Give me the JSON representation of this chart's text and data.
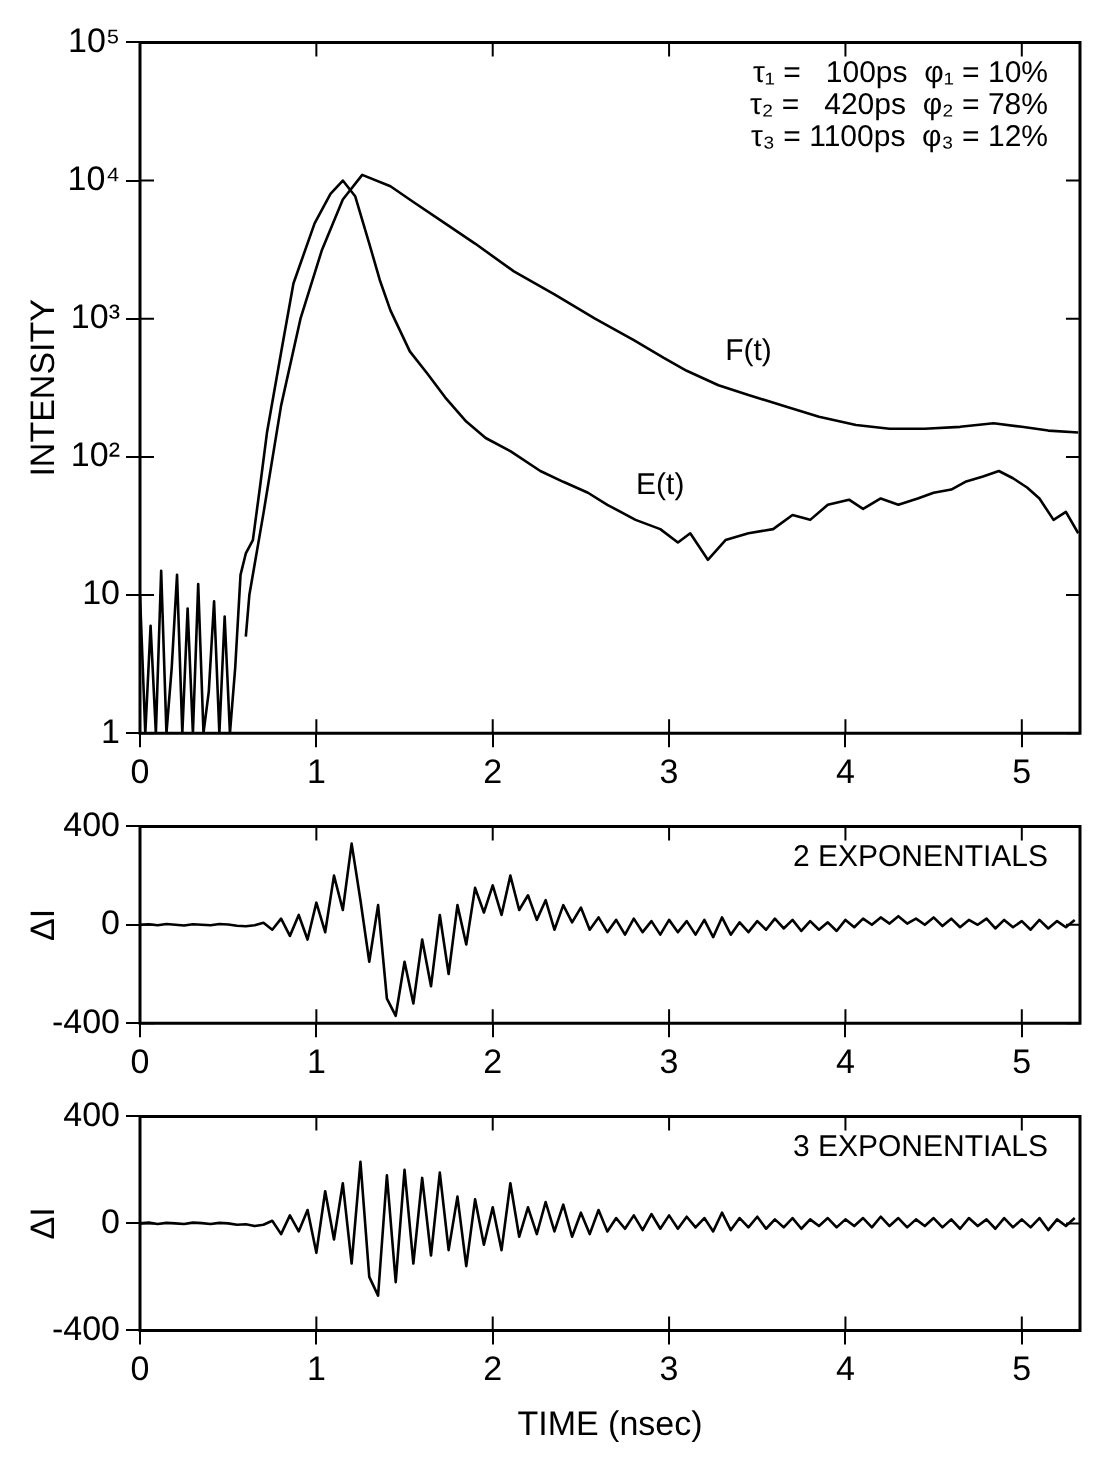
{
  "chart_data": [
    {
      "type": "line",
      "ylabel": "INTENSITY",
      "log": "y",
      "grid": false,
      "legend": false,
      "marker": "none",
      "line_style": "solid",
      "xlim": [
        0,
        5.33
      ],
      "xticks": [
        0,
        1,
        2,
        3,
        4,
        5
      ],
      "ylim": [
        1,
        100000
      ],
      "yticks": [
        {
          "value": 1,
          "label": "1"
        },
        {
          "value": 10,
          "label": "10"
        },
        {
          "value": 100,
          "label": "10²"
        },
        {
          "value": 1000,
          "label": "10³"
        },
        {
          "value": 10000,
          "label": "10⁴"
        },
        {
          "value": 100000,
          "label": "10⁵"
        }
      ],
      "annotations": [
        "τ₁ =   100ps  φ₁ = 10%",
        "τ₂ =   420ps  φ₂ = 78%",
        "τ₃ = 1100ps  φ₃ = 12%"
      ],
      "series": [
        {
          "name": "E(t)",
          "color": "#000000",
          "x": [
            0,
            0.03,
            0.06,
            0.09,
            0.12,
            0.15,
            0.18,
            0.21,
            0.24,
            0.27,
            0.3,
            0.33,
            0.36,
            0.39,
            0.42,
            0.45,
            0.48,
            0.51,
            0.54,
            0.57,
            0.6,
            0.64,
            0.68,
            0.72,
            0.8,
            0.87,
            0.99,
            1.08,
            1.15,
            1.22,
            1.3,
            1.36,
            1.42,
            1.53,
            1.63,
            1.73,
            1.85,
            1.96,
            2.1,
            2.27,
            2.4,
            2.54,
            2.65,
            2.81,
            2.95,
            3.05,
            3.12,
            3.22,
            3.32,
            3.45,
            3.59,
            3.7,
            3.8,
            3.9,
            4.02,
            4.1,
            4.2,
            4.3,
            4.41,
            4.5,
            4.6,
            4.68,
            4.78,
            4.87,
            4.95,
            5.03,
            5.1,
            5.18,
            5.25,
            5.32
          ],
          "values": [
            10,
            1,
            6,
            1,
            15,
            1,
            3,
            14,
            1,
            8,
            1,
            12,
            1,
            2,
            9,
            1,
            7,
            1,
            3,
            14,
            20,
            25,
            60,
            150,
            570,
            1800,
            4900,
            8000,
            10000,
            7700,
            3500,
            1900,
            1150,
            580,
            400,
            270,
            180,
            137,
            110,
            79,
            66,
            55,
            45,
            35,
            30,
            24,
            28,
            18,
            25,
            28,
            30,
            38,
            35,
            45,
            49,
            42,
            50,
            45,
            50,
            55,
            58,
            66,
            72,
            79,
            70,
            60,
            50,
            35,
            40,
            28
          ]
        },
        {
          "name": "F(t)",
          "color": "#000000",
          "x": [
            0.6,
            0.62,
            0.7,
            0.8,
            0.91,
            1.03,
            1.15,
            1.26,
            1.42,
            1.55,
            1.73,
            1.9,
            2.12,
            2.35,
            2.58,
            2.8,
            2.97,
            3.1,
            3.28,
            3.45,
            3.67,
            3.85,
            4.06,
            4.25,
            4.45,
            4.65,
            4.84,
            5.0,
            5.15,
            5.32
          ],
          "values": [
            5,
            10,
            39,
            235,
            1000,
            3100,
            7300,
            11000,
            9100,
            7000,
            4900,
            3500,
            2200,
            1500,
            1000,
            700,
            520,
            420,
            330,
            280,
            230,
            195,
            170,
            160,
            160,
            165,
            175,
            165,
            155,
            150
          ]
        }
      ]
    },
    {
      "type": "line",
      "ylabel": "ΔI",
      "grid": false,
      "legend": false,
      "marker": "none",
      "line_style": "solid",
      "xlim": [
        0,
        5.33
      ],
      "xticks": [
        0,
        1,
        2,
        3,
        4,
        5
      ],
      "ylim": [
        -400,
        400
      ],
      "yticks": [
        -400,
        0,
        400
      ],
      "annotations": [
        "2 EXPONENTIALS"
      ],
      "series": [
        {
          "color": "#000000",
          "x": [
            0,
            0.05,
            0.1,
            0.15,
            0.2,
            0.25,
            0.3,
            0.35,
            0.4,
            0.45,
            0.5,
            0.55,
            0.6,
            0.65,
            0.7,
            0.75,
            0.8,
            0.85,
            0.9,
            0.95,
            1,
            1.05,
            1.1,
            1.15,
            1.2,
            1.25,
            1.3,
            1.35,
            1.4,
            1.45,
            1.5,
            1.55,
            1.6,
            1.65,
            1.7,
            1.75,
            1.8,
            1.85,
            1.9,
            1.95,
            2,
            2.05,
            2.1,
            2.15,
            2.2,
            2.25,
            2.3,
            2.35,
            2.4,
            2.45,
            2.5,
            2.55,
            2.6,
            2.65,
            2.7,
            2.75,
            2.8,
            2.85,
            2.9,
            2.95,
            3,
            3.05,
            3.1,
            3.15,
            3.2,
            3.25,
            3.3,
            3.35,
            3.4,
            3.45,
            3.5,
            3.55,
            3.6,
            3.65,
            3.7,
            3.75,
            3.8,
            3.85,
            3.9,
            3.95,
            4,
            4.05,
            4.1,
            4.15,
            4.2,
            4.25,
            4.3,
            4.35,
            4.4,
            4.45,
            4.5,
            4.55,
            4.6,
            4.65,
            4.7,
            4.75,
            4.8,
            4.85,
            4.9,
            4.95,
            5,
            5.05,
            5.1,
            5.15,
            5.2,
            5.25,
            5.3
          ],
          "values": [
            0,
            2,
            -2,
            3,
            0,
            -3,
            2,
            0,
            -2,
            3,
            1,
            -4,
            -6,
            -2,
            8,
            -20,
            25,
            -45,
            40,
            -60,
            90,
            -30,
            200,
            60,
            330,
            100,
            -150,
            80,
            -300,
            -370,
            -150,
            -320,
            -60,
            -250,
            40,
            -200,
            80,
            -80,
            150,
            50,
            160,
            40,
            200,
            60,
            120,
            20,
            100,
            -20,
            80,
            10,
            70,
            -20,
            30,
            -30,
            20,
            -40,
            25,
            -30,
            15,
            -40,
            20,
            -30,
            15,
            -40,
            20,
            -50,
            30,
            -40,
            10,
            -30,
            15,
            -20,
            25,
            -15,
            20,
            -25,
            15,
            -20,
            10,
            -25,
            20,
            -10,
            25,
            0,
            30,
            5,
            35,
            5,
            25,
            0,
            30,
            -5,
            25,
            -10,
            20,
            0,
            25,
            -15,
            20,
            -10,
            15,
            -20,
            20,
            -15,
            15,
            -10,
            20
          ]
        }
      ]
    },
    {
      "type": "line",
      "ylabel": "ΔI",
      "xlabel": "TIME (nsec)",
      "grid": false,
      "legend": false,
      "marker": "none",
      "line_style": "solid",
      "xlim": [
        0,
        5.33
      ],
      "xticks": [
        0,
        1,
        2,
        3,
        4,
        5
      ],
      "ylim": [
        -400,
        400
      ],
      "yticks": [
        -400,
        0,
        400
      ],
      "annotations": [
        "3 EXPONENTIALS"
      ],
      "series": [
        {
          "color": "#000000",
          "x": [
            0,
            0.05,
            0.1,
            0.15,
            0.2,
            0.25,
            0.3,
            0.35,
            0.4,
            0.45,
            0.5,
            0.55,
            0.6,
            0.65,
            0.7,
            0.75,
            0.8,
            0.85,
            0.9,
            0.95,
            1,
            1.05,
            1.1,
            1.15,
            1.2,
            1.25,
            1.3,
            1.35,
            1.4,
            1.45,
            1.5,
            1.55,
            1.6,
            1.65,
            1.7,
            1.75,
            1.8,
            1.85,
            1.9,
            1.95,
            2,
            2.05,
            2.1,
            2.15,
            2.2,
            2.25,
            2.3,
            2.35,
            2.4,
            2.45,
            2.5,
            2.55,
            2.6,
            2.65,
            2.7,
            2.75,
            2.8,
            2.85,
            2.9,
            2.95,
            3,
            3.05,
            3.1,
            3.15,
            3.2,
            3.25,
            3.3,
            3.35,
            3.4,
            3.45,
            3.5,
            3.55,
            3.6,
            3.65,
            3.7,
            3.75,
            3.8,
            3.85,
            3.9,
            3.95,
            4,
            4.05,
            4.1,
            4.15,
            4.2,
            4.25,
            4.3,
            4.35,
            4.4,
            4.45,
            4.5,
            4.55,
            4.6,
            4.65,
            4.7,
            4.75,
            4.8,
            4.85,
            4.9,
            4.95,
            5,
            5.05,
            5.1,
            5.15,
            5.2,
            5.25,
            5.3
          ],
          "values": [
            0,
            3,
            -2,
            2,
            0,
            -2,
            3,
            1,
            -2,
            2,
            0,
            -5,
            -3,
            -10,
            -5,
            10,
            -40,
            30,
            -30,
            50,
            -110,
            120,
            -60,
            150,
            -150,
            230,
            -200,
            -270,
            180,
            -220,
            200,
            -150,
            170,
            -120,
            190,
            -100,
            100,
            -160,
            90,
            -80,
            60,
            -100,
            150,
            -50,
            60,
            -40,
            80,
            -30,
            70,
            -50,
            40,
            -40,
            50,
            -30,
            20,
            -20,
            30,
            -25,
            35,
            -20,
            30,
            -20,
            25,
            -15,
            20,
            -30,
            40,
            -25,
            20,
            -15,
            25,
            -20,
            15,
            -15,
            20,
            -20,
            15,
            -10,
            20,
            -15,
            15,
            -10,
            20,
            -15,
            25,
            -10,
            20,
            -15,
            15,
            -10,
            20,
            -15,
            15,
            -20,
            20,
            -10,
            15,
            -20,
            20,
            -15,
            15,
            -15,
            20,
            -25,
            15,
            -10,
            20
          ]
        }
      ]
    }
  ]
}
